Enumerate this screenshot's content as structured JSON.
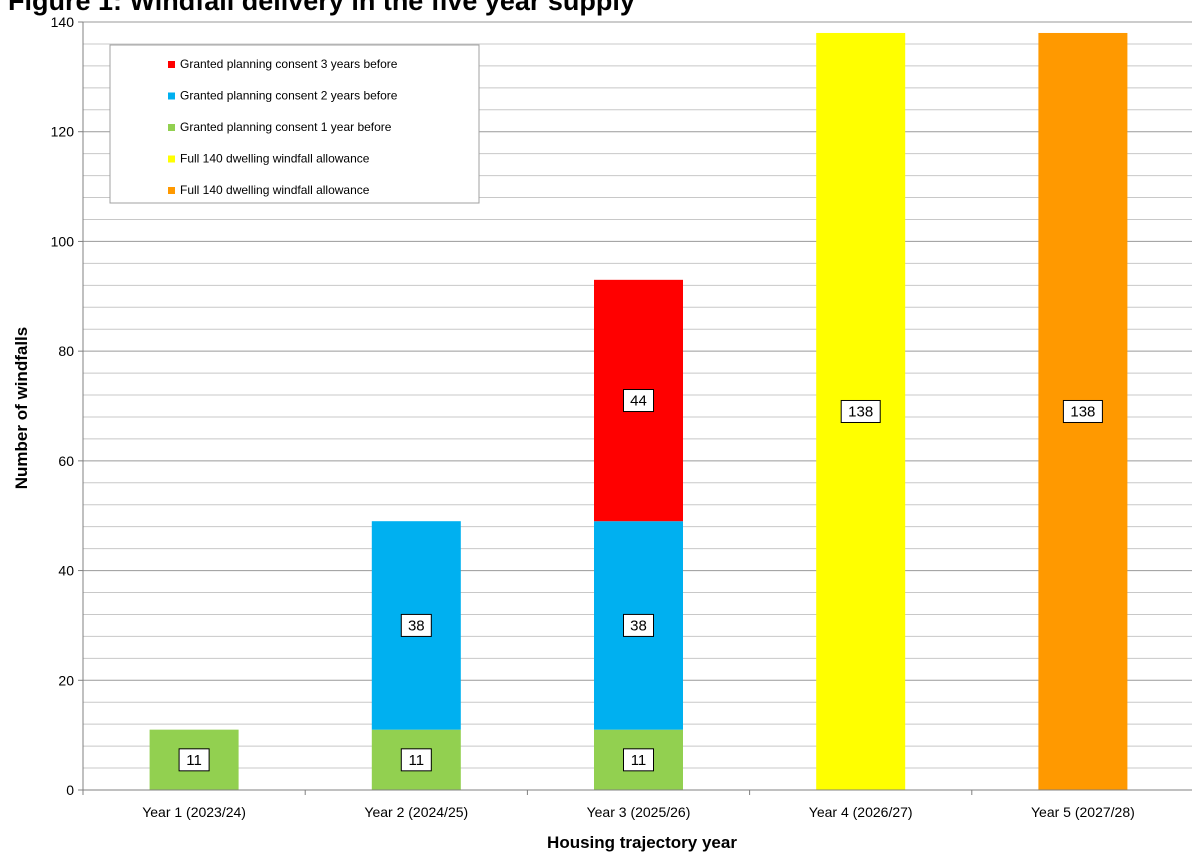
{
  "chart_data": {
    "type": "bar",
    "stacked": true,
    "title": "Figure 1: Windfall delivery in the five year supply",
    "xlabel": "Housing trajectory year",
    "ylabel": "Number of windfalls",
    "ylim": [
      0,
      140
    ],
    "y_major_ticks": [
      0,
      20,
      40,
      60,
      80,
      100,
      120,
      140
    ],
    "y_minor_step": 4,
    "grid": true,
    "legend_position": "top-left",
    "categories": [
      "Year 1 (2023/24)",
      "Year 2 (2024/25)",
      "Year 3 (2025/26)",
      "Year 4 (2026/27)",
      "Year 5 (2027/28)"
    ],
    "series": [
      {
        "name": "Granted planning consent 1 year before",
        "color": "#92d050",
        "values": [
          11,
          11,
          11,
          null,
          null
        ],
        "labels": [
          "11",
          "11",
          "11",
          "",
          ""
        ]
      },
      {
        "name": "Granted planning consent 2 years before",
        "color": "#00b0f0",
        "values": [
          null,
          38,
          38,
          null,
          null
        ],
        "labels": [
          "",
          "38",
          "38",
          "",
          ""
        ]
      },
      {
        "name": "Granted planning consent 3 years before",
        "color": "#ff0000",
        "values": [
          null,
          null,
          44,
          null,
          null
        ],
        "labels": [
          "",
          "",
          "44",
          "",
          ""
        ]
      },
      {
        "name": "Full 140 dwelling windfall allowance",
        "color": "#ffff00",
        "values": [
          null,
          null,
          null,
          138,
          null
        ],
        "labels": [
          "",
          "",
          "",
          "138",
          ""
        ]
      },
      {
        "name": "Full 140 dwelling windfall allowance",
        "color": "#ff9900",
        "values": [
          null,
          null,
          null,
          null,
          138
        ],
        "labels": [
          "",
          "",
          "",
          "",
          "138"
        ]
      }
    ],
    "legend_order": [
      2,
      1,
      0,
      3,
      4
    ]
  }
}
